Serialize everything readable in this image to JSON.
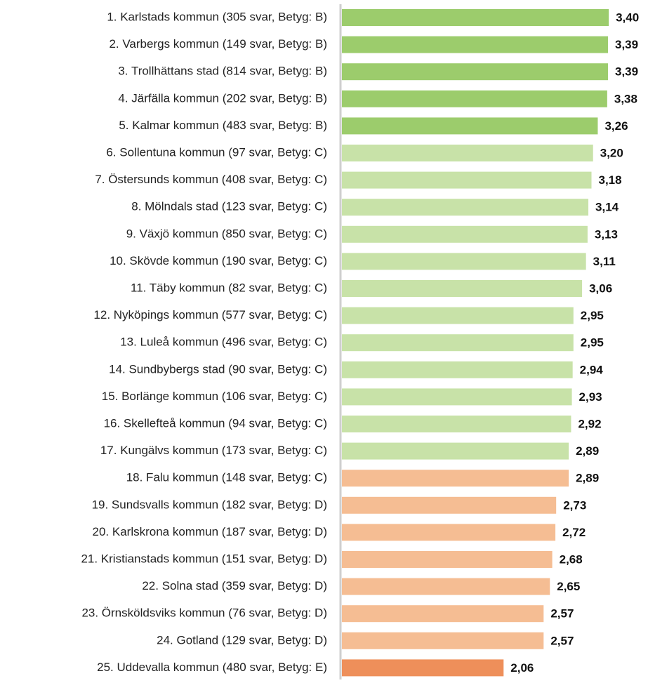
{
  "chart_data": {
    "type": "barh",
    "categories": [
      "1. Karlstads kommun (305 svar, Betyg: B)",
      "2. Varbergs kommun (149 svar, Betyg: B)",
      "3. Trollhättans stad (814 svar, Betyg: B)",
      "4. Järfälla kommun (202 svar, Betyg: B)",
      "5. Kalmar kommun (483 svar, Betyg: B)",
      "6. Sollentuna kommun (97 svar, Betyg: C)",
      "7. Östersunds kommun (408 svar, Betyg: C)",
      "8. Mölndals stad (123 svar, Betyg: C)",
      "9. Växjö kommun (850 svar, Betyg: C)",
      "10. Skövde kommun (190 svar, Betyg: C)",
      "11. Täby kommun (82 svar, Betyg: C)",
      "12. Nyköpings kommun (577 svar, Betyg: C)",
      "13. Luleå kommun (496 svar, Betyg: C)",
      "14. Sundbybergs stad (90 svar, Betyg: C)",
      "15. Borlänge kommun (106 svar, Betyg: C)",
      "16. Skellefteå kommun (94 svar, Betyg: C)",
      "17. Kungälvs kommun (173 svar, Betyg: C)",
      "18. Falu kommun (148 svar, Betyg: C)",
      "19. Sundsvalls kommun (182 svar, Betyg: D)",
      "20. Karlskrona kommun (187 svar, Betyg: D)",
      "21. Kristianstads kommun (151 svar, Betyg: D)",
      "22. Solna stad (359 svar, Betyg: D)",
      "23. Örnsköldsviks kommun (76 svar, Betyg: D)",
      "24. Gotland (129 svar, Betyg: D)",
      "25. Uddevalla kommun (480 svar, Betyg: E)"
    ],
    "values": [
      3.4,
      3.39,
      3.39,
      3.38,
      3.26,
      3.2,
      3.18,
      3.14,
      3.13,
      3.11,
      3.06,
      2.95,
      2.95,
      2.94,
      2.93,
      2.92,
      2.89,
      2.89,
      2.73,
      2.72,
      2.68,
      2.65,
      2.57,
      2.57,
      2.06
    ],
    "value_labels": [
      "3,40",
      "3,39",
      "3,39",
      "3,38",
      "3,26",
      "3,20",
      "3,18",
      "3,14",
      "3,13",
      "3,11",
      "3,06",
      "2,95",
      "2,95",
      "2,94",
      "2,93",
      "2,92",
      "2,89",
      "2,89",
      "2,73",
      "2,72",
      "2,68",
      "2,65",
      "2,57",
      "2,57",
      "2,06"
    ],
    "colors": [
      "#9ccc6c",
      "#9ccc6c",
      "#9ccc6c",
      "#9ccc6c",
      "#9ccc6c",
      "#c8e2a8",
      "#c8e2a8",
      "#c8e2a8",
      "#c8e2a8",
      "#c8e2a8",
      "#c8e2a8",
      "#c8e2a8",
      "#c8e2a8",
      "#c8e2a8",
      "#c8e2a8",
      "#c8e2a8",
      "#c8e2a8",
      "#f5bd93",
      "#f5bd93",
      "#f5bd93",
      "#f5bd93",
      "#f5bd93",
      "#f5bd93",
      "#f5bd93",
      "#ee8f5a"
    ],
    "xlim": [
      0,
      3.9
    ]
  }
}
